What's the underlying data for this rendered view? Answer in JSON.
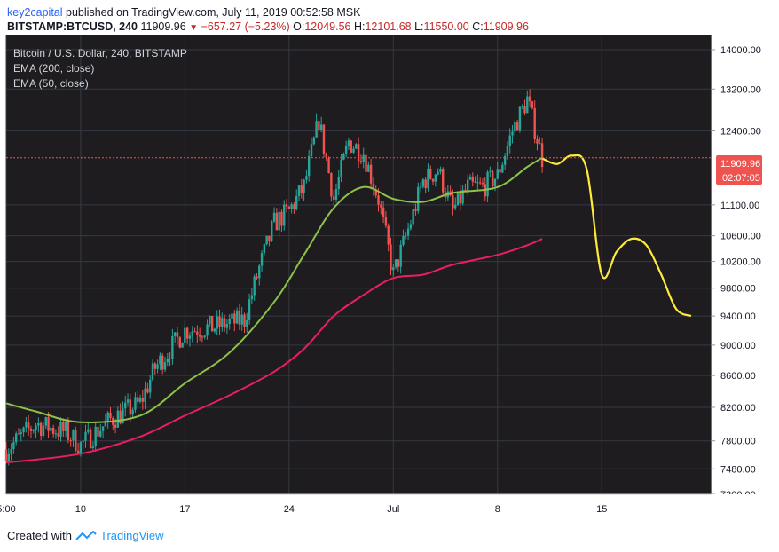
{
  "header": {
    "author": "key2capital",
    "published": "published on TradingView.com, July 11, 2019 00:52:58 MSK",
    "symbol": "BITSTAMP:BTCUSD, 240",
    "last": "11909.96",
    "change": "−657.27 (−5.23%)",
    "o_label": "O:",
    "o": "12049.56",
    "h_label": "H:",
    "h": "12101.68",
    "l_label": "L:",
    "l": "11550.00",
    "c_label": "C:",
    "c": "11909.96"
  },
  "legend": {
    "title": "Bitcoin / U.S. Dollar, 240, BITSTAMP",
    "ema200": "EMA (200, close)",
    "ema50": "EMA (50, close)"
  },
  "price_tag": {
    "price": "11909.96",
    "countdown": "02:07:05"
  },
  "footer": {
    "created_with": "Created with",
    "brand": "TradingView"
  },
  "colors": {
    "background": "#1e1c1f",
    "grid": "#363a45",
    "up": "#26a69a",
    "down": "#ef5350",
    "ema50": "#8bc34a",
    "ema200": "#e91e63",
    "projection": "#ffeb3b",
    "price_line": "#ef5350"
  },
  "chart_data": {
    "type": "line",
    "title": "Bitcoin / U.S. Dollar, 240, BITSTAMP",
    "xlabel": "",
    "ylabel": "",
    "x_ticks": [
      "5:00",
      "10",
      "17",
      "24",
      "Jul",
      "8",
      "15"
    ],
    "y_ticks": [
      7200,
      7480,
      7800,
      8200,
      8600,
      9000,
      9400,
      9800,
      10200,
      10600,
      11100,
      12400,
      13200,
      14000
    ],
    "ylim": [
      7200,
      14300
    ],
    "y_scale": "log",
    "grid": true,
    "legend": "top-left",
    "series": [
      {
        "name": "BTCUSD",
        "kind": "candlestick-close",
        "x": [
          "Jun 5",
          "Jun 7",
          "Jun 9",
          "Jun 10",
          "Jun 12",
          "Jun 14",
          "Jun 15",
          "Jun 17",
          "Jun 19",
          "Jun 21",
          "Jun 22",
          "Jun 23",
          "Jun 24",
          "Jun 25",
          "Jun 26",
          "Jun 27",
          "Jun 28",
          "Jun 29",
          "Jun 30",
          "Jul 1",
          "Jul 2",
          "Jul 3",
          "Jul 4",
          "Jul 5",
          "Jul 6",
          "Jul 7",
          "Jul 8",
          "Jul 9",
          "Jul 10",
          "Jul 11"
        ],
        "values": [
          7700,
          8000,
          7900,
          7750,
          8050,
          8250,
          8700,
          9200,
          9250,
          9350,
          10100,
          10800,
          11000,
          11400,
          12600,
          11200,
          12200,
          12000,
          11200,
          10000,
          10700,
          11500,
          11700,
          11000,
          11400,
          11400,
          11600,
          12400,
          13000,
          11910
        ]
      },
      {
        "name": "EMA (50, close)",
        "x": [
          "Jun 5",
          "Jun 7",
          "Jun 10",
          "Jun 14",
          "Jun 17",
          "Jun 20",
          "Jun 23",
          "Jun 25",
          "Jun 27",
          "Jun 29",
          "Jul 1",
          "Jul 3",
          "Jul 5",
          "Jul 8",
          "Jul 10",
          "Jul 11"
        ],
        "values": [
          8250,
          8150,
          8020,
          8100,
          8500,
          8900,
          9600,
          10300,
          11050,
          11400,
          11200,
          11150,
          11300,
          11400,
          11750,
          11910
        ]
      },
      {
        "name": "EMA (200, close)",
        "x": [
          "Jun 5",
          "Jun 10",
          "Jun 14",
          "Jun 17",
          "Jun 20",
          "Jun 23",
          "Jun 25",
          "Jun 27",
          "Jun 29",
          "Jul 1",
          "Jul 3",
          "Jul 5",
          "Jul 8",
          "Jul 10",
          "Jul 11"
        ],
        "values": [
          7550,
          7650,
          7850,
          8100,
          8350,
          8650,
          8950,
          9400,
          9700,
          9950,
          10000,
          10150,
          10300,
          10450,
          10550
        ]
      },
      {
        "name": "Projection",
        "x": [
          "Jul 11",
          "Jul 12",
          "Jul 13",
          "Jul 14",
          "Jul 15",
          "Jul 16",
          "Jul 17",
          "Jul 18",
          "Jul 19",
          "Jul 20",
          "Jul 21"
        ],
        "values": [
          11900,
          11800,
          11950,
          11700,
          10000,
          10350,
          10550,
          10450,
          10000,
          9500,
          9400
        ]
      }
    ]
  }
}
